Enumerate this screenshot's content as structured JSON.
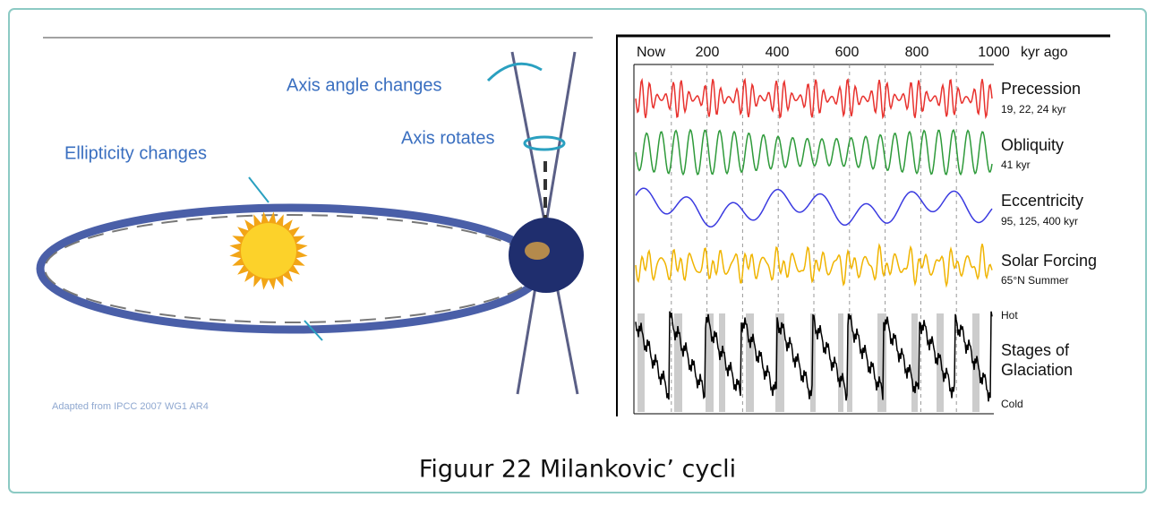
{
  "illustration": {
    "axis_angle": "Axis angle changes",
    "axis_rotates": "Axis rotates",
    "ellipticity": "Ellipticity changes",
    "credit": "Adapted from IPCC 2007  WG1 AR4"
  },
  "panel": {
    "ticks": [
      "Now",
      "200",
      "400",
      "600",
      "800",
      "1000"
    ],
    "unit": "kyr ago",
    "rows": [
      {
        "name": "Precession",
        "detail": "19, 22, 24 kyr"
      },
      {
        "name": "Obliquity",
        "detail": "41 kyr"
      },
      {
        "name": "Eccentricity",
        "detail": "95, 125, 400 kyr"
      },
      {
        "name": "Solar Forcing",
        "detail": "65°N Summer"
      }
    ],
    "hot": "Hot",
    "glaciation": [
      "Stages of",
      "Glaciation"
    ],
    "cold": "Cold"
  },
  "caption": "Figuur 22 Milankovic’ cycli"
}
